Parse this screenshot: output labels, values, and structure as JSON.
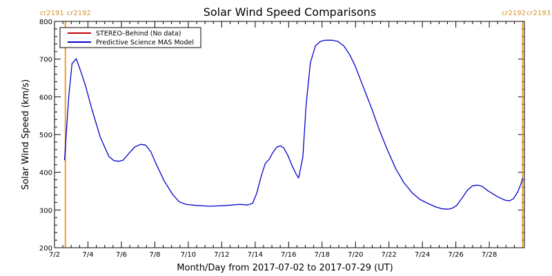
{
  "chart_data": {
    "type": "line",
    "title": "Solar Wind Speed Comparisons",
    "xlabel": "Month/Day from 2017-07-02 to 2017-07-29 (UT)",
    "ylabel": "Solar Wind Speed (km/s)",
    "x_unit": "day of July 2017",
    "xlim": [
      2,
      30.1
    ],
    "ylim": [
      200,
      800
    ],
    "y_ticks": [
      200,
      300,
      400,
      500,
      600,
      700,
      800
    ],
    "x_ticks": [
      {
        "x": 2,
        "label": "7/2"
      },
      {
        "x": 4,
        "label": "7/4"
      },
      {
        "x": 6,
        "label": "7/6"
      },
      {
        "x": 8,
        "label": "7/8"
      },
      {
        "x": 10,
        "label": "7/10"
      },
      {
        "x": 12,
        "label": "7/12"
      },
      {
        "x": 14,
        "label": "7/14"
      },
      {
        "x": 16,
        "label": "7/16"
      },
      {
        "x": 18,
        "label": "7/18"
      },
      {
        "x": 20,
        "label": "7/20"
      },
      {
        "x": 22,
        "label": "7/22"
      },
      {
        "x": 24,
        "label": "7/24"
      },
      {
        "x": 26,
        "label": "7/26"
      },
      {
        "x": 28,
        "label": "7/28"
      }
    ],
    "legend_position": "top-left",
    "rotation_markers": [
      {
        "x": 2.65,
        "left_label": "cr2191",
        "right_label": "cr2192",
        "color": "#e8a030"
      },
      {
        "x": 30.0,
        "left_label": "cr2192",
        "right_label": "cr2193",
        "color": "#e8a030"
      }
    ],
    "series": [
      {
        "name": "STEREO–Behind (No data)",
        "color": "#c00000",
        "points": []
      },
      {
        "name": "Predictive Science MAS Model",
        "color": "#0000cc",
        "points": [
          [
            2.6,
            432
          ],
          [
            2.85,
            600
          ],
          [
            3.05,
            688
          ],
          [
            3.3,
            701
          ],
          [
            3.55,
            670
          ],
          [
            3.85,
            630
          ],
          [
            4.25,
            565
          ],
          [
            4.75,
            492
          ],
          [
            5.25,
            442
          ],
          [
            5.55,
            431
          ],
          [
            5.85,
            429
          ],
          [
            6.1,
            432
          ],
          [
            6.45,
            450
          ],
          [
            6.8,
            467
          ],
          [
            7.15,
            474
          ],
          [
            7.45,
            472
          ],
          [
            7.75,
            455
          ],
          [
            8.1,
            420
          ],
          [
            8.55,
            378
          ],
          [
            9.05,
            342
          ],
          [
            9.45,
            322
          ],
          [
            9.85,
            315
          ],
          [
            10.5,
            312
          ],
          [
            11.3,
            310
          ],
          [
            12.3,
            312
          ],
          [
            13.1,
            315
          ],
          [
            13.55,
            313
          ],
          [
            13.85,
            318
          ],
          [
            14.1,
            345
          ],
          [
            14.35,
            388
          ],
          [
            14.6,
            423
          ],
          [
            14.85,
            435
          ],
          [
            15.05,
            452
          ],
          [
            15.3,
            467
          ],
          [
            15.5,
            470
          ],
          [
            15.7,
            465
          ],
          [
            15.95,
            445
          ],
          [
            16.2,
            418
          ],
          [
            16.45,
            395
          ],
          [
            16.6,
            385
          ],
          [
            16.85,
            440
          ],
          [
            17.05,
            580
          ],
          [
            17.3,
            690
          ],
          [
            17.6,
            735
          ],
          [
            17.9,
            747
          ],
          [
            18.2,
            750
          ],
          [
            18.6,
            750
          ],
          [
            18.95,
            747
          ],
          [
            19.3,
            735
          ],
          [
            19.65,
            712
          ],
          [
            19.95,
            685
          ],
          [
            20.3,
            645
          ],
          [
            20.65,
            605
          ],
          [
            21.0,
            565
          ],
          [
            21.4,
            515
          ],
          [
            21.9,
            460
          ],
          [
            22.4,
            410
          ],
          [
            22.9,
            372
          ],
          [
            23.4,
            345
          ],
          [
            23.85,
            328
          ],
          [
            24.3,
            318
          ],
          [
            24.8,
            308
          ],
          [
            25.2,
            303
          ],
          [
            25.55,
            302
          ],
          [
            25.8,
            305
          ],
          [
            26.05,
            312
          ],
          [
            26.35,
            330
          ],
          [
            26.7,
            353
          ],
          [
            27.0,
            364
          ],
          [
            27.3,
            366
          ],
          [
            27.6,
            362
          ],
          [
            27.85,
            353
          ],
          [
            28.2,
            343
          ],
          [
            28.6,
            333
          ],
          [
            28.95,
            326
          ],
          [
            29.2,
            324
          ],
          [
            29.45,
            330
          ],
          [
            29.7,
            348
          ],
          [
            29.9,
            370
          ],
          [
            30.0,
            385
          ]
        ]
      }
    ]
  }
}
